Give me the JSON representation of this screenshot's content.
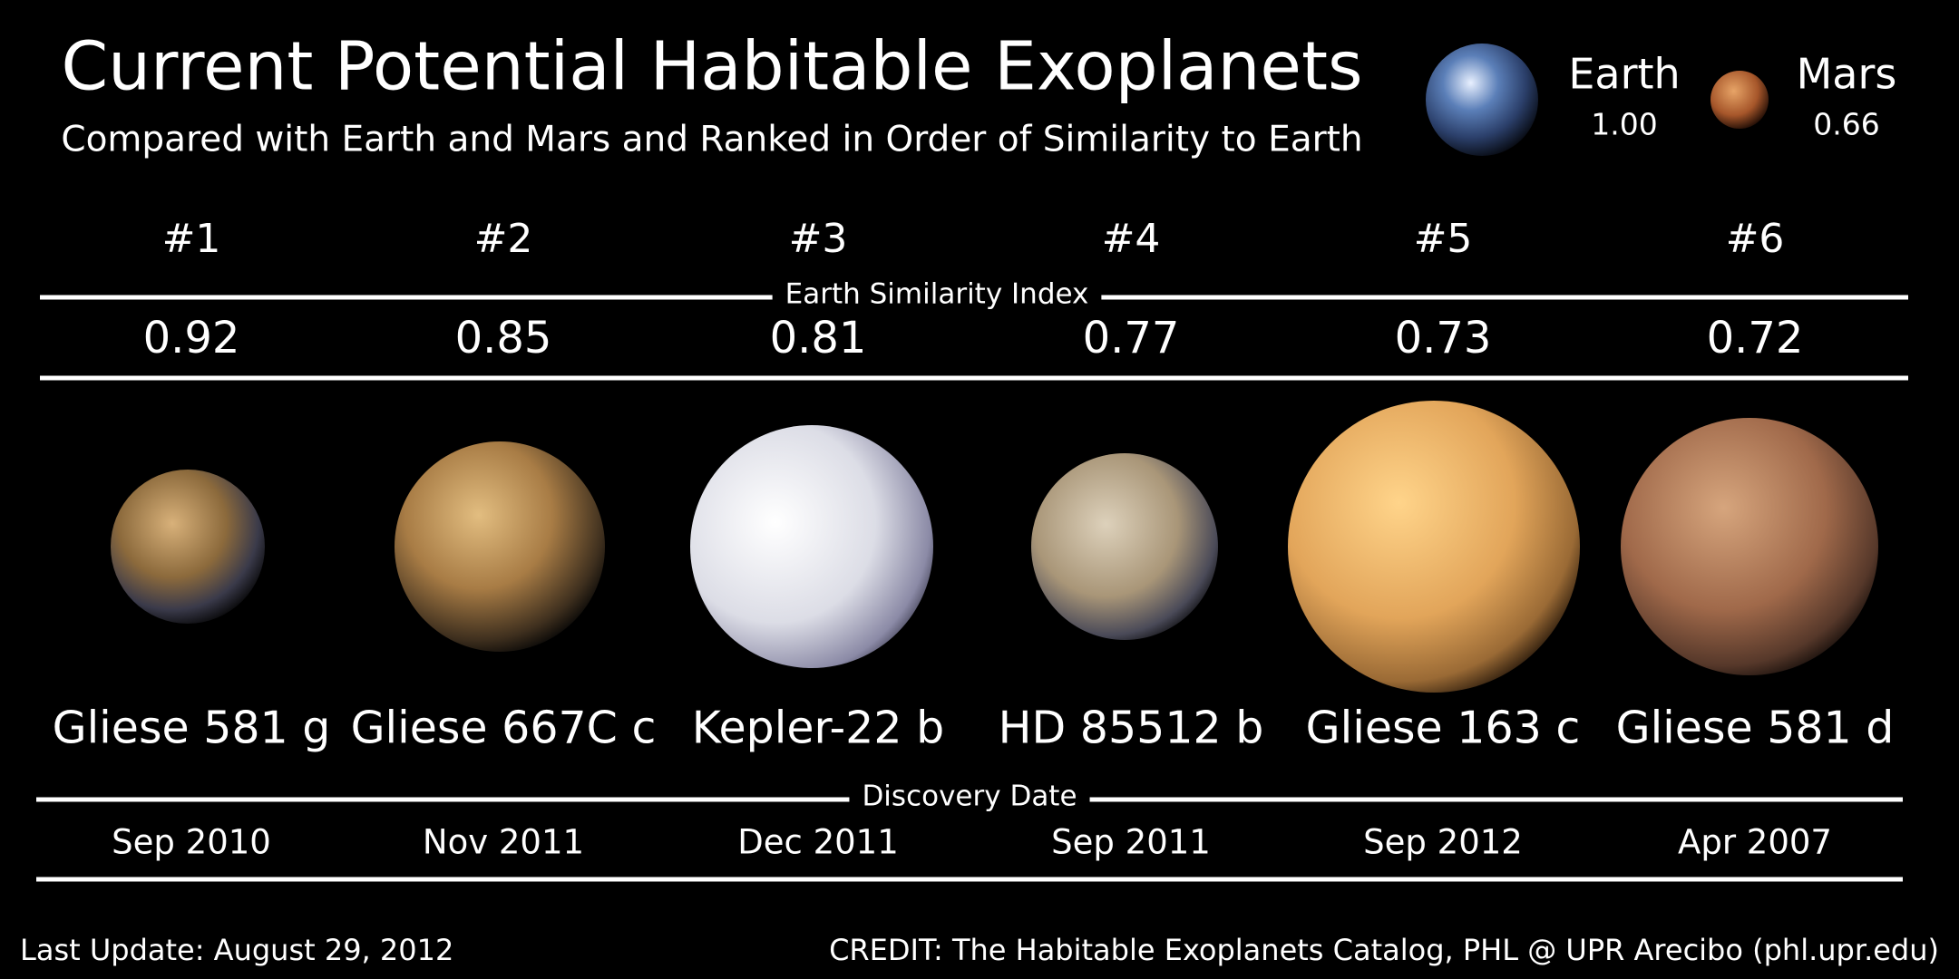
{
  "header": {
    "title": "Current Potential Habitable Exoplanets",
    "subtitle": "Compared with Earth and Mars and Ranked in Order of Similarity to Earth"
  },
  "references": [
    {
      "name": "Earth",
      "esi": "1.00"
    },
    {
      "name": "Mars",
      "esi": "0.66"
    }
  ],
  "esi_label": "Earth Similarity Index",
  "discovery_label": "Discovery Date",
  "planets": [
    {
      "rank": "#1",
      "esi": "0.92",
      "name": "Gliese 581 g",
      "date": "Sep 2010"
    },
    {
      "rank": "#2",
      "esi": "0.85",
      "name": "Gliese 667C c",
      "date": "Nov 2011"
    },
    {
      "rank": "#3",
      "esi": "0.81",
      "name": "Kepler-22 b",
      "date": "Dec 2011"
    },
    {
      "rank": "#4",
      "esi": "0.77",
      "name": "HD 85512 b",
      "date": "Sep 2011"
    },
    {
      "rank": "#5",
      "esi": "0.73",
      "name": "Gliese 163 c",
      "date": "Sep 2012"
    },
    {
      "rank": "#6",
      "esi": "0.72",
      "name": "Gliese 581 d",
      "date": "Apr 2007"
    }
  ],
  "footer": {
    "updated": "Last Update: August 29, 2012",
    "credit": "CREDIT: The Habitable Exoplanets Catalog, PHL @ UPR Arecibo (phl.upr.edu)"
  }
}
